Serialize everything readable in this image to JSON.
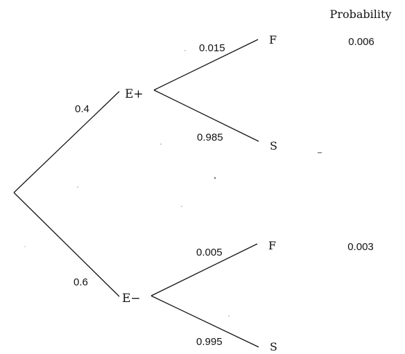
{
  "header": {
    "column_title": "Probability"
  },
  "nodes": {
    "e_plus": "E+",
    "e_minus": "E−",
    "e_plus_f": "F",
    "e_plus_s": "S",
    "e_minus_f": "F",
    "e_minus_s": "S"
  },
  "branch_probabilities": {
    "root_to_e_plus": "0.4",
    "root_to_e_minus": "0.6",
    "e_plus_to_f": "0.015",
    "e_plus_to_s": "0.985",
    "e_minus_to_f": "0.005",
    "e_minus_to_s": "0.995"
  },
  "joint_probabilities": {
    "e_plus_f": "0.006",
    "e_minus_f": "0.003"
  }
}
